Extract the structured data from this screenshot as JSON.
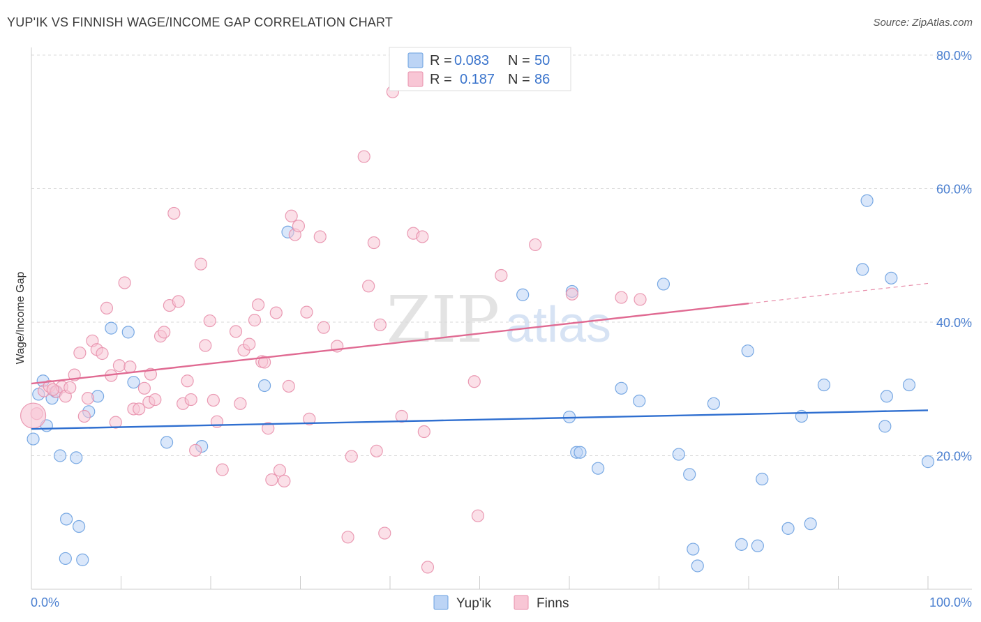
{
  "header": {
    "title": "YUP'IK VS FINNISH WAGE/INCOME GAP CORRELATION CHART",
    "source": "Source: ZipAtlas.com"
  },
  "watermark": {
    "zip": "ZIP",
    "atlas": "atlas"
  },
  "legend_top": [
    {
      "r_label": "R = ",
      "r_value": "0.083",
      "n_label": "N = ",
      "n_value": "50",
      "color": "#6aa0e0",
      "fill": "#bcd4f5"
    },
    {
      "r_label": "R = ",
      "r_value": "0.187",
      "n_label": "N = ",
      "n_value": "86",
      "color": "#e890ac",
      "fill": "#f8c6d5"
    }
  ],
  "legend_bottom": [
    {
      "label": "Yup'ik",
      "color": "#6aa0e0",
      "fill": "#bcd4f5"
    },
    {
      "label": "Finns",
      "color": "#e890ac",
      "fill": "#f8c6d5"
    }
  ],
  "chart_data": {
    "type": "scatter",
    "title": "YUP'IK VS FINNISH WAGE/INCOME GAP CORRELATION CHART",
    "xlabel": "",
    "ylabel": "Wage/Income Gap",
    "xlim": [
      0,
      100
    ],
    "ylim": [
      0,
      80
    ],
    "x_tick_labels": [
      {
        "value": 0,
        "label": "0.0%"
      },
      {
        "value": 100,
        "label": "100.0%"
      }
    ],
    "y_tick_labels": [
      {
        "value": 20,
        "label": "20.0%"
      },
      {
        "value": 40,
        "label": "40.0%"
      },
      {
        "value": 60,
        "label": "60.0%"
      },
      {
        "value": 80,
        "label": "80.0%"
      }
    ],
    "x_minor_ticks": [
      0,
      10,
      20,
      30,
      40,
      50,
      60,
      70,
      80,
      90,
      100
    ],
    "y_gridlines": [
      20,
      40,
      60,
      80
    ],
    "series": [
      {
        "name": "Yup'ik",
        "color": "#6aa0e0",
        "fill": "#bcd4f5",
        "trend": {
          "x0": 0,
          "y0": 24,
          "x1": 100,
          "y1": 26.8
        },
        "points": [
          [
            0.2,
            22.5
          ],
          [
            0.8,
            29.2
          ],
          [
            1.3,
            31.2
          ],
          [
            1.7,
            24.5
          ],
          [
            2.3,
            28.6
          ],
          [
            2.7,
            29.6
          ],
          [
            3.2,
            20.0
          ],
          [
            3.9,
            10.5
          ],
          [
            3.8,
            4.6
          ],
          [
            5.0,
            19.7
          ],
          [
            5.3,
            9.4
          ],
          [
            5.7,
            4.4
          ],
          [
            6.4,
            26.6
          ],
          [
            7.4,
            28.9
          ],
          [
            8.9,
            39.1
          ],
          [
            10.8,
            38.5
          ],
          [
            11.4,
            31.0
          ],
          [
            15.1,
            22.0
          ],
          [
            19.0,
            21.4
          ],
          [
            26.0,
            30.5
          ],
          [
            28.6,
            53.5
          ],
          [
            54.8,
            44.1
          ],
          [
            60.0,
            25.8
          ],
          [
            60.3,
            44.6
          ],
          [
            60.8,
            20.5
          ],
          [
            61.2,
            20.5
          ],
          [
            63.2,
            18.1
          ],
          [
            65.8,
            30.1
          ],
          [
            67.8,
            28.2
          ],
          [
            70.5,
            45.7
          ],
          [
            72.2,
            20.2
          ],
          [
            73.4,
            17.2
          ],
          [
            73.8,
            6.0
          ],
          [
            74.3,
            3.5
          ],
          [
            76.1,
            27.8
          ],
          [
            79.2,
            6.7
          ],
          [
            79.9,
            35.7
          ],
          [
            81.0,
            6.5
          ],
          [
            81.5,
            16.5
          ],
          [
            84.4,
            9.1
          ],
          [
            85.9,
            25.9
          ],
          [
            86.9,
            9.8
          ],
          [
            88.4,
            30.6
          ],
          [
            92.7,
            47.9
          ],
          [
            93.2,
            58.2
          ],
          [
            95.2,
            24.4
          ],
          [
            95.4,
            28.9
          ],
          [
            95.9,
            46.6
          ],
          [
            97.9,
            30.6
          ],
          [
            100.0,
            19.1
          ]
        ]
      },
      {
        "name": "Finns",
        "color": "#e890ac",
        "fill": "#f8c6d5",
        "trend": {
          "x0": 0,
          "y0": 30.8,
          "x1": 80,
          "y1": 42.8
        },
        "trend_dashed": {
          "x0": 80,
          "y0": 42.8,
          "x1": 100,
          "y1": 45.8
        },
        "points": [
          [
            0.6,
            26.3
          ],
          [
            1.4,
            29.7
          ],
          [
            2.0,
            30.4
          ],
          [
            2.8,
            29.6
          ],
          [
            3.4,
            30.3
          ],
          [
            3.8,
            28.9
          ],
          [
            4.3,
            30.2
          ],
          [
            4.8,
            32.1
          ],
          [
            5.4,
            35.4
          ],
          [
            5.9,
            25.9
          ],
          [
            6.3,
            28.6
          ],
          [
            6.8,
            37.2
          ],
          [
            7.3,
            35.9
          ],
          [
            7.9,
            35.3
          ],
          [
            8.4,
            42.1
          ],
          [
            8.9,
            32.0
          ],
          [
            9.4,
            25.0
          ],
          [
            9.8,
            33.5
          ],
          [
            10.4,
            45.9
          ],
          [
            11.0,
            33.3
          ],
          [
            11.4,
            27.0
          ],
          [
            12.0,
            27.0
          ],
          [
            12.6,
            30.1
          ],
          [
            13.1,
            28.0
          ],
          [
            13.3,
            32.2
          ],
          [
            13.8,
            28.4
          ],
          [
            14.4,
            37.9
          ],
          [
            14.8,
            38.5
          ],
          [
            15.4,
            42.5
          ],
          [
            15.9,
            56.3
          ],
          [
            16.4,
            43.1
          ],
          [
            16.9,
            27.8
          ],
          [
            17.4,
            31.2
          ],
          [
            17.8,
            28.4
          ],
          [
            18.3,
            20.8
          ],
          [
            18.9,
            48.7
          ],
          [
            19.4,
            36.5
          ],
          [
            19.9,
            40.2
          ],
          [
            20.3,
            28.3
          ],
          [
            20.7,
            25.1
          ],
          [
            21.3,
            17.9
          ],
          [
            22.8,
            38.6
          ],
          [
            23.3,
            27.8
          ],
          [
            23.7,
            35.8
          ],
          [
            24.3,
            36.7
          ],
          [
            24.9,
            40.3
          ],
          [
            25.3,
            42.6
          ],
          [
            25.7,
            34.1
          ],
          [
            26.0,
            34.0
          ],
          [
            26.4,
            24.1
          ],
          [
            26.8,
            16.4
          ],
          [
            27.3,
            41.4
          ],
          [
            27.7,
            17.8
          ],
          [
            28.2,
            16.2
          ],
          [
            28.7,
            30.4
          ],
          [
            29.0,
            55.9
          ],
          [
            29.4,
            53.1
          ],
          [
            29.8,
            54.4
          ],
          [
            30.7,
            41.5
          ],
          [
            31.0,
            25.5
          ],
          [
            32.2,
            52.8
          ],
          [
            32.6,
            39.2
          ],
          [
            34.1,
            36.4
          ],
          [
            35.3,
            7.8
          ],
          [
            35.7,
            19.9
          ],
          [
            37.1,
            64.8
          ],
          [
            37.6,
            45.4
          ],
          [
            38.2,
            51.9
          ],
          [
            38.5,
            20.7
          ],
          [
            38.9,
            39.6
          ],
          [
            39.4,
            8.4
          ],
          [
            40.3,
            74.5
          ],
          [
            41.3,
            25.9
          ],
          [
            42.6,
            53.3
          ],
          [
            43.6,
            52.8
          ],
          [
            43.8,
            23.6
          ],
          [
            44.2,
            3.3
          ],
          [
            49.4,
            31.1
          ],
          [
            49.8,
            11.0
          ],
          [
            52.4,
            47.0
          ],
          [
            56.2,
            51.6
          ],
          [
            60.3,
            44.2
          ],
          [
            65.8,
            43.7
          ],
          [
            67.9,
            43.4
          ],
          [
            0.2,
            26.0
          ],
          [
            2.4,
            29.9
          ]
        ]
      }
    ]
  }
}
